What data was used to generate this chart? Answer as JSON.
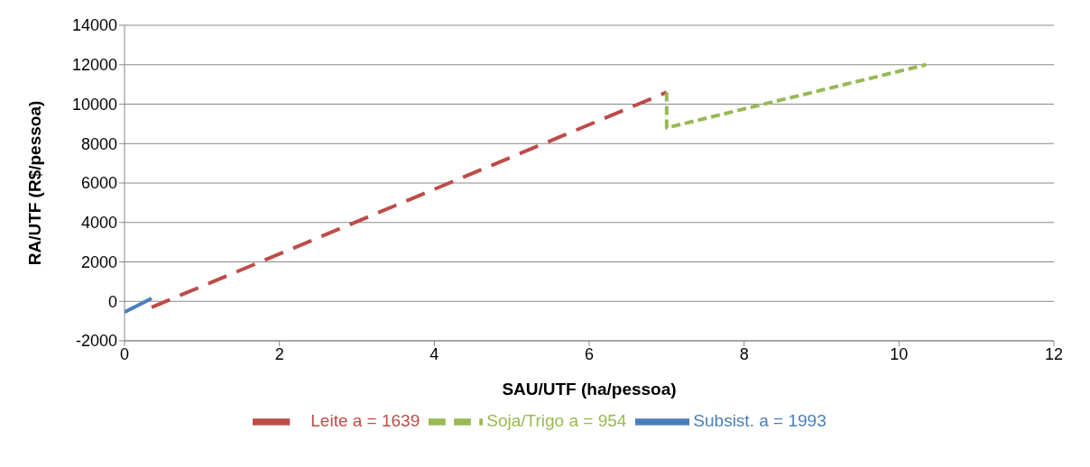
{
  "chart_data": {
    "type": "line",
    "xlabel": "SAU/UTF (ha/pessoa)",
    "ylabel": "RA/UTF (R$/pessoa)",
    "xlim": [
      0,
      12
    ],
    "xticks": [
      0,
      2,
      4,
      6,
      8,
      10,
      12
    ],
    "ylim": [
      -2000,
      14000
    ],
    "yticks": [
      -2000,
      0,
      2000,
      4000,
      6000,
      8000,
      10000,
      12000,
      14000
    ],
    "grid": "y",
    "legend": "bottom",
    "marker": "none",
    "series": [
      {
        "name": "Subsist. a =  1993",
        "color": "#4a7ebb",
        "line_style": "solid",
        "x": [
          0,
          0.35
        ],
        "values": [
          -550,
          150
        ]
      },
      {
        "name": "Leite a =  1639",
        "color": "#be4b48",
        "line_style": "dashed",
        "x": [
          0.35,
          7
        ],
        "values": [
          -300,
          10600
        ]
      },
      {
        "name": "Soja/Trigo a =  954",
        "color": "#98b954",
        "line_style": "dotted",
        "x": [
          7,
          7,
          10.35
        ],
        "values": [
          10600,
          8800,
          12000
        ]
      }
    ]
  }
}
